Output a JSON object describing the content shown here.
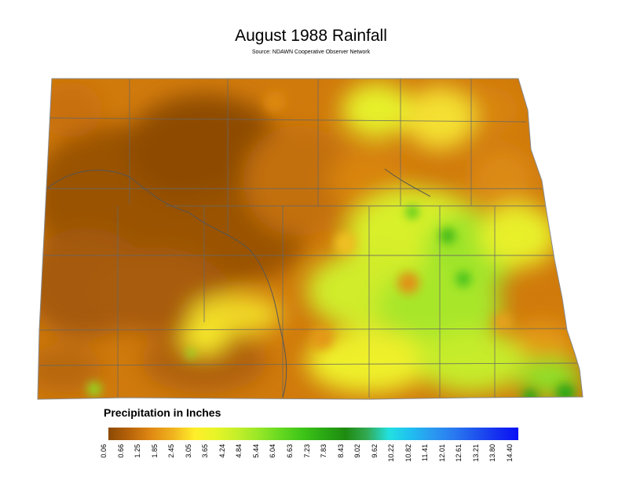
{
  "title": "August 1988 Rainfall",
  "source": "Source: NDAWN Cooperative Observer Network",
  "legend": {
    "title": "Precipitation in Inches",
    "ticks": [
      "0.06",
      "0.66",
      "1.25",
      "1.85",
      "2.45",
      "3.05",
      "3.65",
      "4.24",
      "4.84",
      "5.44",
      "6.04",
      "6.63",
      "7.23",
      "7.83",
      "8.43",
      "9.02",
      "9.62",
      "10.22",
      "10.82",
      "11.41",
      "12.01",
      "12.61",
      "13.21",
      "13.80",
      "14.40"
    ],
    "colors": [
      "#8c4a05",
      "#b8640a",
      "#e08a14",
      "#f0b41e",
      "#ffee2a",
      "#e6f528",
      "#c3ee2a",
      "#96e628",
      "#64d820",
      "#3ec418",
      "#2aa814",
      "#1e8a10",
      "#33aa55",
      "#22e0e0",
      "#20bff0",
      "#2a9af0",
      "#2a7af0",
      "#1f55ee",
      "#1530f0",
      "#0a10f5"
    ]
  }
}
